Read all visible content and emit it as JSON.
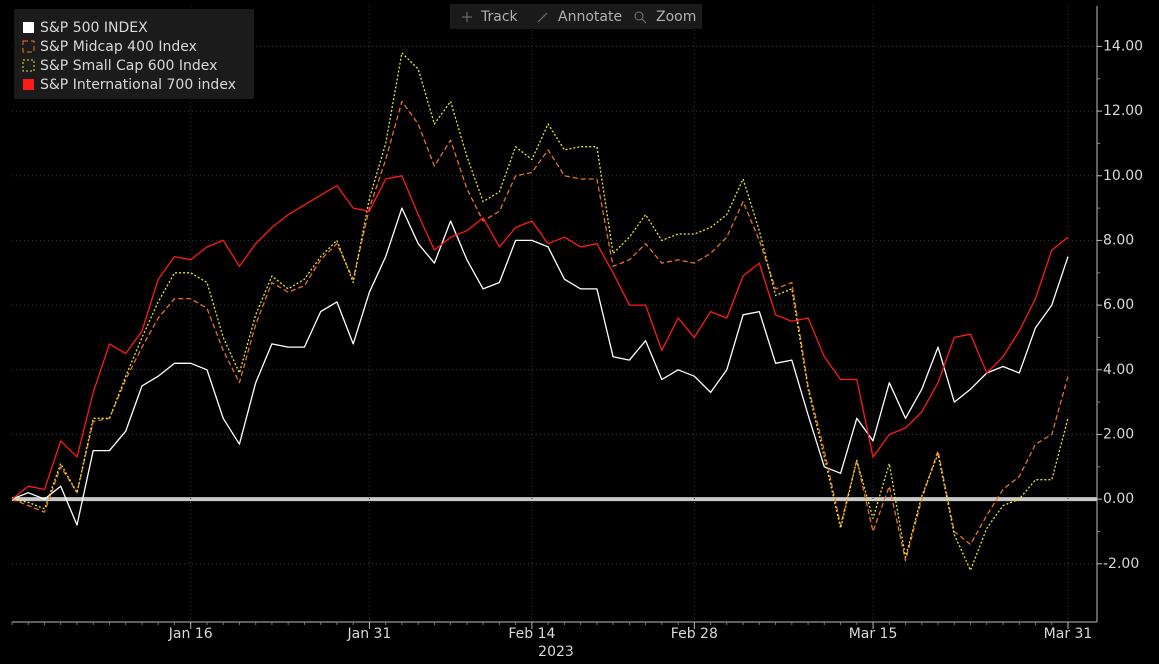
{
  "toolbar": {
    "buttons": [
      "Track",
      "Annotate",
      "Zoom"
    ]
  },
  "chart_data": {
    "type": "line",
    "x_sublabel": "2023",
    "categories": [
      null,
      null,
      null,
      null,
      null,
      null,
      null,
      null,
      null,
      null,
      null,
      "Jan 16",
      null,
      null,
      null,
      null,
      null,
      null,
      null,
      null,
      null,
      null,
      "Jan 31",
      null,
      null,
      null,
      null,
      null,
      null,
      null,
      null,
      null,
      "Feb 14",
      null,
      null,
      null,
      null,
      null,
      null,
      null,
      null,
      null,
      "Feb 28",
      null,
      null,
      null,
      null,
      null,
      null,
      null,
      null,
      null,
      null,
      "Mar 15",
      null,
      null,
      null,
      null,
      null,
      null,
      null,
      null,
      null,
      null,
      null,
      "Mar 31"
    ],
    "series": [
      {
        "name": "S&P 500 INDEX",
        "color": "#ffffff",
        "style": "solid",
        "values": [
          0,
          0.2,
          0.0,
          0.4,
          -0.8,
          1.5,
          1.5,
          2.1,
          3.5,
          3.8,
          4.2,
          4.2,
          4.0,
          2.5,
          1.7,
          3.6,
          4.8,
          4.7,
          4.7,
          5.8,
          6.1,
          4.8,
          6.4,
          7.5,
          9.0,
          7.9,
          7.3,
          8.6,
          7.4,
          6.5,
          6.7,
          8.0,
          8.0,
          7.8,
          6.8,
          6.5,
          6.5,
          4.4,
          4.3,
          4.9,
          3.7,
          4.0,
          3.8,
          3.3,
          4.0,
          5.7,
          5.8,
          4.2,
          4.3,
          2.6,
          1.0,
          0.8,
          2.5,
          1.8,
          3.6,
          2.5,
          3.4,
          4.7,
          3.0,
          3.4,
          3.9,
          4.1,
          3.9,
          5.3,
          6.0,
          7.5
        ]
      },
      {
        "name": "S&P Midcap 400 Index",
        "color": "#e8702a",
        "style": "dashed",
        "values": [
          0,
          -0.2,
          -0.4,
          1.0,
          0.2,
          2.4,
          2.5,
          3.7,
          4.7,
          5.6,
          6.2,
          6.2,
          5.9,
          4.6,
          3.6,
          5.4,
          6.7,
          6.4,
          6.6,
          7.4,
          7.9,
          6.8,
          9.0,
          10.5,
          12.3,
          11.6,
          10.3,
          11.1,
          9.6,
          8.6,
          8.9,
          10.0,
          10.1,
          10.8,
          10.0,
          9.9,
          9.9,
          7.2,
          7.4,
          7.9,
          7.3,
          7.4,
          7.3,
          7.6,
          8.1,
          9.2,
          8.0,
          6.5,
          6.7,
          3.5,
          1.5,
          -0.8,
          1.2,
          -1.0,
          0.4,
          -1.9,
          0.0,
          1.5,
          -1.0,
          -1.4,
          -0.5,
          0.3,
          0.7,
          1.7,
          2.0,
          3.8
        ]
      },
      {
        "name": "S&P Small Cap 600 Index",
        "color": "#e6e62e",
        "style": "dotted",
        "values": [
          0,
          -0.1,
          -0.3,
          1.1,
          0.2,
          2.5,
          2.5,
          3.8,
          5.0,
          6.1,
          7.0,
          7.0,
          6.7,
          5.0,
          3.9,
          5.7,
          6.9,
          6.5,
          6.8,
          7.5,
          8.0,
          6.7,
          9.3,
          11.0,
          13.8,
          13.3,
          11.6,
          12.3,
          10.6,
          9.2,
          9.5,
          10.9,
          10.5,
          11.6,
          10.8,
          10.9,
          10.9,
          7.6,
          8.1,
          8.8,
          8.0,
          8.2,
          8.2,
          8.4,
          8.8,
          9.9,
          8.3,
          6.3,
          6.5,
          3.4,
          1.3,
          -0.9,
          1.2,
          -0.6,
          1.1,
          -1.8,
          0.1,
          1.4,
          -1.1,
          -2.2,
          -0.9,
          -0.2,
          0.0,
          0.6,
          0.6,
          2.5
        ]
      },
      {
        "name": "S&P International 700 index",
        "color": "#ff1a1a",
        "style": "solid",
        "values": [
          0,
          0.4,
          0.3,
          1.8,
          1.3,
          3.3,
          4.8,
          4.5,
          5.2,
          6.8,
          7.5,
          7.4,
          7.8,
          8.0,
          7.2,
          7.9,
          8.4,
          8.8,
          9.1,
          9.4,
          9.7,
          9.0,
          8.9,
          9.9,
          10.0,
          8.8,
          7.7,
          8.1,
          8.3,
          8.7,
          7.8,
          8.4,
          8.6,
          7.9,
          8.1,
          7.8,
          7.9,
          7.0,
          6.0,
          6.0,
          4.6,
          5.6,
          5.0,
          5.8,
          5.6,
          6.9,
          7.3,
          5.7,
          5.5,
          5.6,
          4.4,
          3.7,
          3.7,
          1.3,
          2.0,
          2.2,
          2.7,
          3.6,
          5.0,
          5.1,
          3.9,
          4.4,
          5.2,
          6.2,
          7.7,
          8.1
        ]
      }
    ],
    "ylim": [
      -3.8,
      15.25
    ],
    "yticks": [
      {
        "value": -2,
        "label": "-2.00"
      },
      {
        "value": 0,
        "label": "0.00"
      },
      {
        "value": 2,
        "label": "2.00"
      },
      {
        "value": 4,
        "label": "4.00"
      },
      {
        "value": 6,
        "label": "6.00"
      },
      {
        "value": 8,
        "label": "8.00"
      },
      {
        "value": 10,
        "label": "10.00"
      },
      {
        "value": 12,
        "label": "12.00"
      },
      {
        "value": 14,
        "label": "14.00"
      }
    ],
    "grid": true,
    "legend": "upper left",
    "zero_line": true
  }
}
